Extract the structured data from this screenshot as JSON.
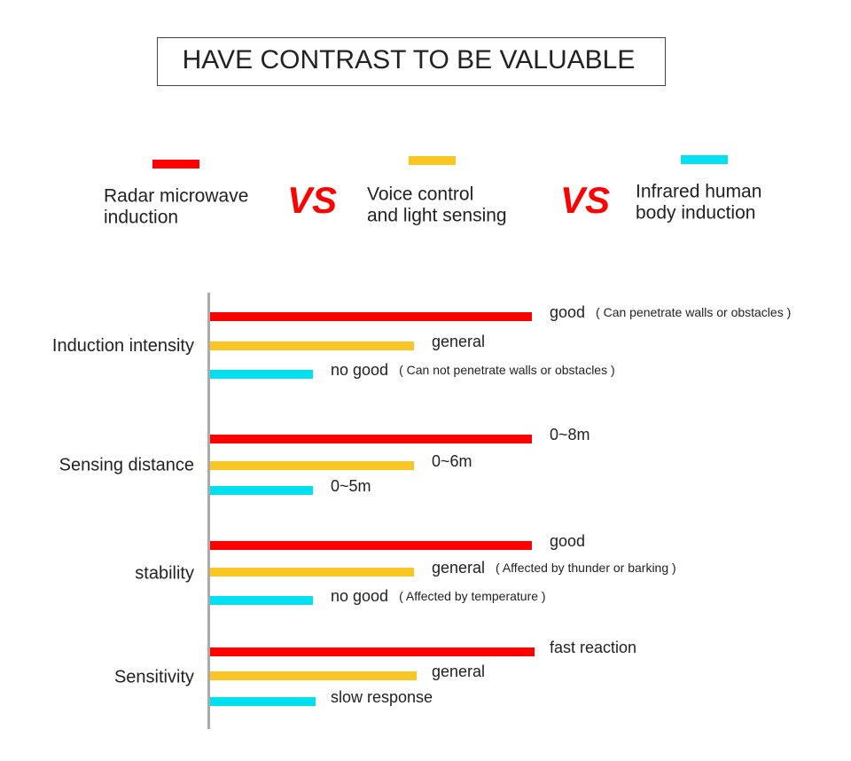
{
  "header": {
    "title": "HAVE CONTRAST TO BE VALUABLE"
  },
  "legend": [
    {
      "lines": [
        "Radar microwave",
        "induction"
      ]
    },
    {
      "lines": [
        "Voice control",
        "and light sensing"
      ]
    },
    {
      "lines": [
        "Infrared human",
        "body induction"
      ]
    }
  ],
  "vs": [
    "VS",
    "VS"
  ],
  "groups": [
    {
      "label": "Induction intensity",
      "items": [
        {
          "text": "good",
          "note": "( Can penetrate walls or obstacles )"
        },
        {
          "text": "general"
        },
        {
          "text": "no good",
          "note": "( Can not penetrate walls or obstacles )"
        }
      ]
    },
    {
      "label": "Sensing distance",
      "items": [
        {
          "text": "0~8m"
        },
        {
          "text": "0~6m"
        },
        {
          "text": "0~5m"
        }
      ]
    },
    {
      "label": "stability",
      "items": [
        {
          "text": "good"
        },
        {
          "text": "general",
          "note": "( Affected by thunder or barking )"
        },
        {
          "text": "no good",
          "note": "( Affected by temperature )"
        }
      ]
    },
    {
      "label": "Sensitivity",
      "items": [
        {
          "text": "fast reaction"
        },
        {
          "text": "general"
        },
        {
          "text": "slow response"
        }
      ]
    }
  ]
}
